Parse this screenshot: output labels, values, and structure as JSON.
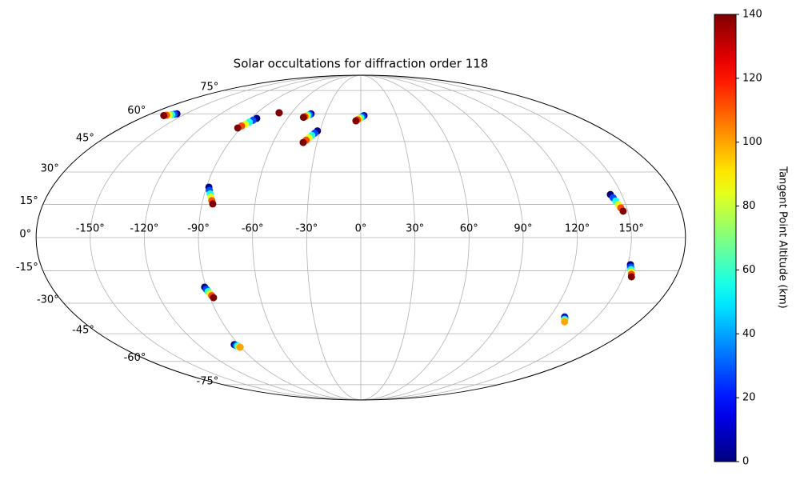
{
  "chart_data": {
    "type": "scatter",
    "projection": "mollweide",
    "title": "Solar occultations for diffraction order 118",
    "colorbar_label": "Tangent Point Altitude (km)",
    "colormap": "jet",
    "clim": [
      0,
      140
    ],
    "cticks": [
      0,
      20,
      40,
      60,
      80,
      100,
      120,
      140
    ],
    "grid": true,
    "xticks": [
      {
        "value": -150,
        "label": "-150°"
      },
      {
        "value": -120,
        "label": "-120°"
      },
      {
        "value": -90,
        "label": "-90°"
      },
      {
        "value": -60,
        "label": "-60°"
      },
      {
        "value": -30,
        "label": "-30°"
      },
      {
        "value": 0,
        "label": "0°"
      },
      {
        "value": 30,
        "label": "30°"
      },
      {
        "value": 60,
        "label": "60°"
      },
      {
        "value": 90,
        "label": "90°"
      },
      {
        "value": 120,
        "label": "120°"
      },
      {
        "value": 150,
        "label": "150°"
      }
    ],
    "yticks": [
      {
        "value": -75,
        "label": "-75°"
      },
      {
        "value": -60,
        "label": "-60°"
      },
      {
        "value": -45,
        "label": "-45°"
      },
      {
        "value": -30,
        "label": "-30°"
      },
      {
        "value": -15,
        "label": "-15°"
      },
      {
        "value": 0,
        "label": "0°"
      },
      {
        "value": 15,
        "label": "15°"
      },
      {
        "value": 30,
        "label": "30°"
      },
      {
        "value": 45,
        "label": "45°"
      },
      {
        "value": 60,
        "label": "60°"
      },
      {
        "value": 75,
        "label": "75°"
      }
    ],
    "x": [
      -157.5,
      -159.1,
      -160.7,
      -162.3,
      -164.0,
      -165.6,
      -85,
      -86.5,
      -88,
      -89.5,
      -91,
      -92.5,
      -70.8,
      -70.8,
      -42.6,
      -43.5,
      -44.5,
      -45.4,
      -46.4,
      -47.3,
      -31.9,
      -33.4,
      -34.9,
      -36.4,
      -37.9,
      -39.4,
      2.7,
      1.4,
      0.1,
      -1.3,
      -2.6,
      -3.9,
      -88.6,
      -87.7,
      -86.7,
      -85.8,
      -84.8,
      -83.9,
      143.5,
      144.3,
      145.1,
      145.8,
      146.6,
      147.4,
      151.6,
      152.2,
      152.8,
      153.4,
      154,
      154.6,
      -90.9,
      -90.3,
      -89.7,
      -89.1,
      -88.5,
      -87.9,
      129.5,
      130.2,
      130.8,
      131.5,
      132.1,
      -93.3,
      -92.7,
      -92,
      -91.4,
      -90.7
    ],
    "y": [
      60,
      59.8,
      59.6,
      59.4,
      59.2,
      59,
      57.4,
      56.3,
      55.3,
      54.2,
      53.2,
      52.1,
      60.6,
      60.6,
      60,
      59.6,
      59.2,
      58.8,
      58.4,
      58,
      50.5,
      49.3,
      48.1,
      46.9,
      45.7,
      44.5,
      59,
      58.4,
      57.8,
      57.2,
      56.6,
      56,
      22.9,
      21.4,
      19.8,
      18.3,
      16.7,
      15.2,
      19.5,
      18,
      16.5,
      14.9,
      13.4,
      11.9,
      -12.2,
      -13.3,
      -14.4,
      -15.5,
      -16.6,
      -17.7,
      -22.5,
      -23.5,
      -24.5,
      -25.4,
      -26.4,
      -27.4,
      -36.6,
      -37.2,
      -37.8,
      -38.4,
      -39,
      -50.7,
      -51.1,
      -51.4,
      -51.8,
      -52.1
    ],
    "values": [
      0,
      28,
      56,
      84,
      112,
      140,
      0,
      28,
      56,
      84,
      112,
      140,
      130,
      140,
      0,
      28,
      56,
      84,
      112,
      140,
      0,
      28,
      56,
      84,
      112,
      140,
      0,
      28,
      56,
      84,
      112,
      140,
      0,
      28,
      56,
      84,
      112,
      140,
      0,
      28,
      56,
      84,
      112,
      140,
      0,
      28,
      56,
      84,
      112,
      140,
      0,
      28,
      56,
      84,
      112,
      140,
      0,
      25,
      50,
      75,
      100,
      0,
      25,
      50,
      75,
      100
    ]
  }
}
